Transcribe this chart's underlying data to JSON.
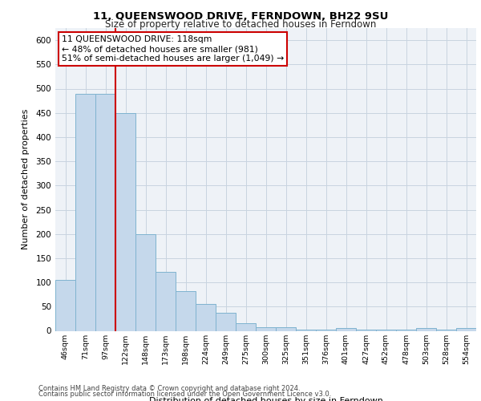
{
  "title1": "11, QUEENSWOOD DRIVE, FERNDOWN, BH22 9SU",
  "title2": "Size of property relative to detached houses in Ferndown",
  "xlabel": "Distribution of detached houses by size in Ferndown",
  "ylabel": "Number of detached properties",
  "footer1": "Contains HM Land Registry data © Crown copyright and database right 2024.",
  "footer2": "Contains public sector information licensed under the Open Government Licence v3.0.",
  "categories": [
    "46sqm",
    "71sqm",
    "97sqm",
    "122sqm",
    "148sqm",
    "173sqm",
    "198sqm",
    "224sqm",
    "249sqm",
    "275sqm",
    "300sqm",
    "325sqm",
    "351sqm",
    "376sqm",
    "401sqm",
    "427sqm",
    "452sqm",
    "478sqm",
    "503sqm",
    "528sqm",
    "554sqm"
  ],
  "values": [
    105,
    490,
    490,
    450,
    200,
    122,
    82,
    55,
    38,
    15,
    8,
    8,
    2,
    2,
    6,
    2,
    2,
    2,
    6,
    2,
    6
  ],
  "bar_color": "#c5d8eb",
  "bar_edge_color": "#7fb3d0",
  "grid_color": "#c8d4e0",
  "vline_color": "#cc0000",
  "annotation_text": "11 QUEENSWOOD DRIVE: 118sqm\n← 48% of detached houses are smaller (981)\n51% of semi-detached houses are larger (1,049) →",
  "annotation_box_color": "#ffffff",
  "annotation_border_color": "#cc0000",
  "ylim": [
    0,
    625
  ],
  "yticks": [
    0,
    50,
    100,
    150,
    200,
    250,
    300,
    350,
    400,
    450,
    500,
    550,
    600
  ],
  "background_color": "#eef2f7"
}
